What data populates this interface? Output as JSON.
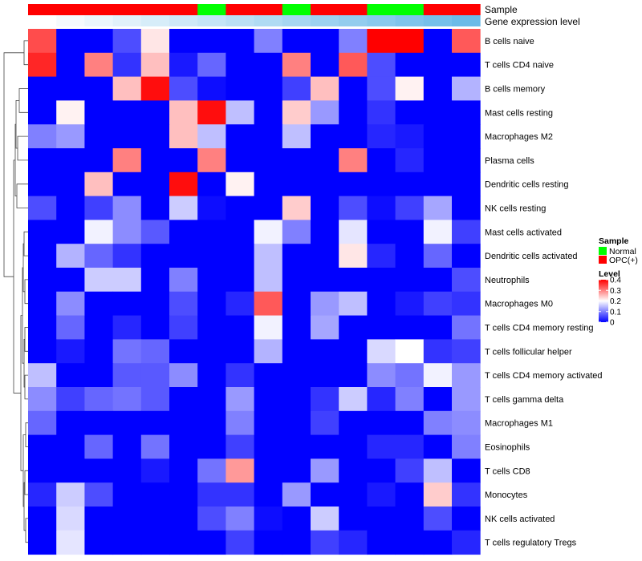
{
  "chart_data": {
    "type": "heatmap",
    "annotation_labels": {
      "sample": "Sample",
      "gene_expression": "Gene expression level"
    },
    "rows": [
      "B cells naive",
      "T cells CD4 naive",
      "B cells memory",
      "Mast cells resting",
      "Macrophages M2",
      "Plasma cells",
      "Dendritic cells resting",
      "NK cells resting",
      "Mast cells activated",
      "Dendritic cells activated",
      "Neutrophils",
      "Macrophages M0",
      "T cells CD4 memory resting",
      "T cells follicular helper",
      "T cells CD4 memory activated",
      "T cells gamma delta",
      "Macrophages M1",
      "Eosinophils",
      "T cells CD8",
      "Monocytes",
      "NK cells activated",
      "T cells regulatory  Tregs"
    ],
    "sample_groups": [
      "OPC(+)",
      "OPC(+)",
      "OPC(+)",
      "OPC(+)",
      "OPC(+)",
      "OPC(+)",
      "Normal",
      "OPC(+)",
      "OPC(+)",
      "Normal",
      "OPC(+)",
      "OPC(+)",
      "Normal",
      "Normal",
      "OPC(+)",
      "OPC(+)"
    ],
    "gene_expression_level": [
      0.0,
      0.067,
      0.133,
      0.2,
      0.267,
      0.333,
      0.4,
      0.467,
      0.533,
      0.6,
      0.667,
      0.733,
      0.8,
      0.867,
      0.933,
      1.0
    ],
    "values": [
      [
        0.34,
        0,
        0,
        0.06,
        0.22,
        0,
        0,
        0,
        0.1,
        0,
        0,
        0.1,
        0.4,
        0.4,
        0,
        0.33
      ],
      [
        0.37,
        0,
        0.3,
        0.04,
        0.25,
        0.02,
        0.08,
        0,
        0,
        0.3,
        0,
        0.33,
        0.06,
        0,
        0,
        0
      ],
      [
        0,
        0,
        0,
        0.25,
        0.39,
        0.06,
        0.01,
        0,
        0,
        0.05,
        0.25,
        0,
        0.06,
        0.21,
        0,
        0.14
      ],
      [
        0,
        0.21,
        0,
        0,
        0,
        0.25,
        0.39,
        0.15,
        0,
        0.24,
        0.12,
        0,
        0.04,
        0,
        0,
        0
      ],
      [
        0.1,
        0.12,
        0,
        0,
        0,
        0.25,
        0.15,
        0,
        0,
        0.15,
        0,
        0,
        0.03,
        0.02,
        0,
        0
      ],
      [
        0,
        0,
        0,
        0.3,
        0,
        0,
        0.3,
        0,
        0,
        0,
        0,
        0.3,
        0,
        0.03,
        0,
        0
      ],
      [
        0,
        0,
        0.25,
        0,
        0,
        0.39,
        0,
        0.21,
        0,
        0,
        0,
        0,
        0,
        0,
        0,
        0
      ],
      [
        0.06,
        0,
        0.05,
        0.11,
        0,
        0.16,
        0.01,
        0,
        0,
        0.24,
        0,
        0.06,
        0.01,
        0.05,
        0.13,
        0
      ],
      [
        0,
        0,
        0.19,
        0.11,
        0.07,
        0,
        0,
        0,
        0.19,
        0.1,
        0,
        0.18,
        0,
        0,
        0.19,
        0.05
      ],
      [
        0,
        0.14,
        0.08,
        0.04,
        0,
        0,
        0,
        0,
        0.15,
        0,
        0,
        0.22,
        0.03,
        0,
        0.08,
        0
      ],
      [
        0,
        0,
        0.16,
        0.16,
        0,
        0.1,
        0,
        0,
        0.15,
        0,
        0,
        0,
        0,
        0,
        0,
        0.06
      ],
      [
        0,
        0.11,
        0,
        0,
        0,
        0.06,
        0,
        0.03,
        0.33,
        0,
        0.12,
        0.15,
        0,
        0.02,
        0.05,
        0.04
      ],
      [
        0,
        0.08,
        0,
        0.03,
        0,
        0.05,
        0,
        0,
        0.19,
        0,
        0.13,
        0,
        0,
        0,
        0,
        0.09
      ],
      [
        0,
        0.02,
        0,
        0.09,
        0.08,
        0,
        0,
        0,
        0.14,
        0,
        0,
        0,
        0.17,
        0.2,
        0.04,
        0.05
      ],
      [
        0.15,
        0,
        0,
        0.07,
        0.07,
        0.11,
        0,
        0.04,
        0,
        0,
        0,
        0,
        0.11,
        0.09,
        0.19,
        0.12
      ],
      [
        0.11,
        0.05,
        0.08,
        0.09,
        0.07,
        0,
        0,
        0.12,
        0,
        0,
        0.04,
        0.16,
        0.03,
        0.1,
        0,
        0.12
      ],
      [
        0.08,
        0,
        0,
        0,
        0,
        0,
        0,
        0.1,
        0,
        0,
        0.05,
        0,
        0,
        0,
        0.1,
        0.11
      ],
      [
        0,
        0,
        0.08,
        0,
        0.09,
        0,
        0,
        0.05,
        0,
        0,
        0,
        0,
        0.03,
        0.03,
        0,
        0.1
      ],
      [
        0,
        0,
        0,
        0,
        0.02,
        0,
        0.09,
        0.28,
        0,
        0,
        0.12,
        0,
        0,
        0.05,
        0.15,
        0
      ],
      [
        0.03,
        0.16,
        0.06,
        0,
        0,
        0,
        0.04,
        0.04,
        0,
        0.12,
        0,
        0,
        0.02,
        0,
        0.24,
        0.04
      ],
      [
        0,
        0.17,
        0,
        0,
        0,
        0,
        0.06,
        0.1,
        0.01,
        0,
        0.16,
        0,
        0,
        0,
        0.06,
        0
      ],
      [
        0,
        0.18,
        0,
        0,
        0,
        0,
        0,
        0.05,
        0,
        0,
        0.05,
        0.03,
        0,
        0,
        0,
        0.03
      ]
    ],
    "legends": [
      {
        "title": "Sample",
        "items": [
          {
            "label": "Normal",
            "color": "#00ff00"
          },
          {
            "label": "OPC(+)",
            "color": "#ff0000"
          }
        ]
      },
      {
        "title": "Level",
        "ticks": [
          {
            "value": 0.4,
            "label": "0.4"
          },
          {
            "value": 0.3,
            "label": "0.3"
          },
          {
            "value": 0.2,
            "label": "0.2"
          },
          {
            "value": 0.1,
            "label": "0.1"
          },
          {
            "value": 0,
            "label": "0"
          }
        ],
        "range": [
          0,
          0.4
        ]
      }
    ],
    "colors": {
      "low": "#0000ff",
      "mid": "#ffffff",
      "high": "#ff0000",
      "mid_value": 0.2,
      "expr_low": "#ffffff",
      "expr_high": "#6bbbe8",
      "normal": "#00ff00",
      "opc": "#ff0000"
    }
  }
}
